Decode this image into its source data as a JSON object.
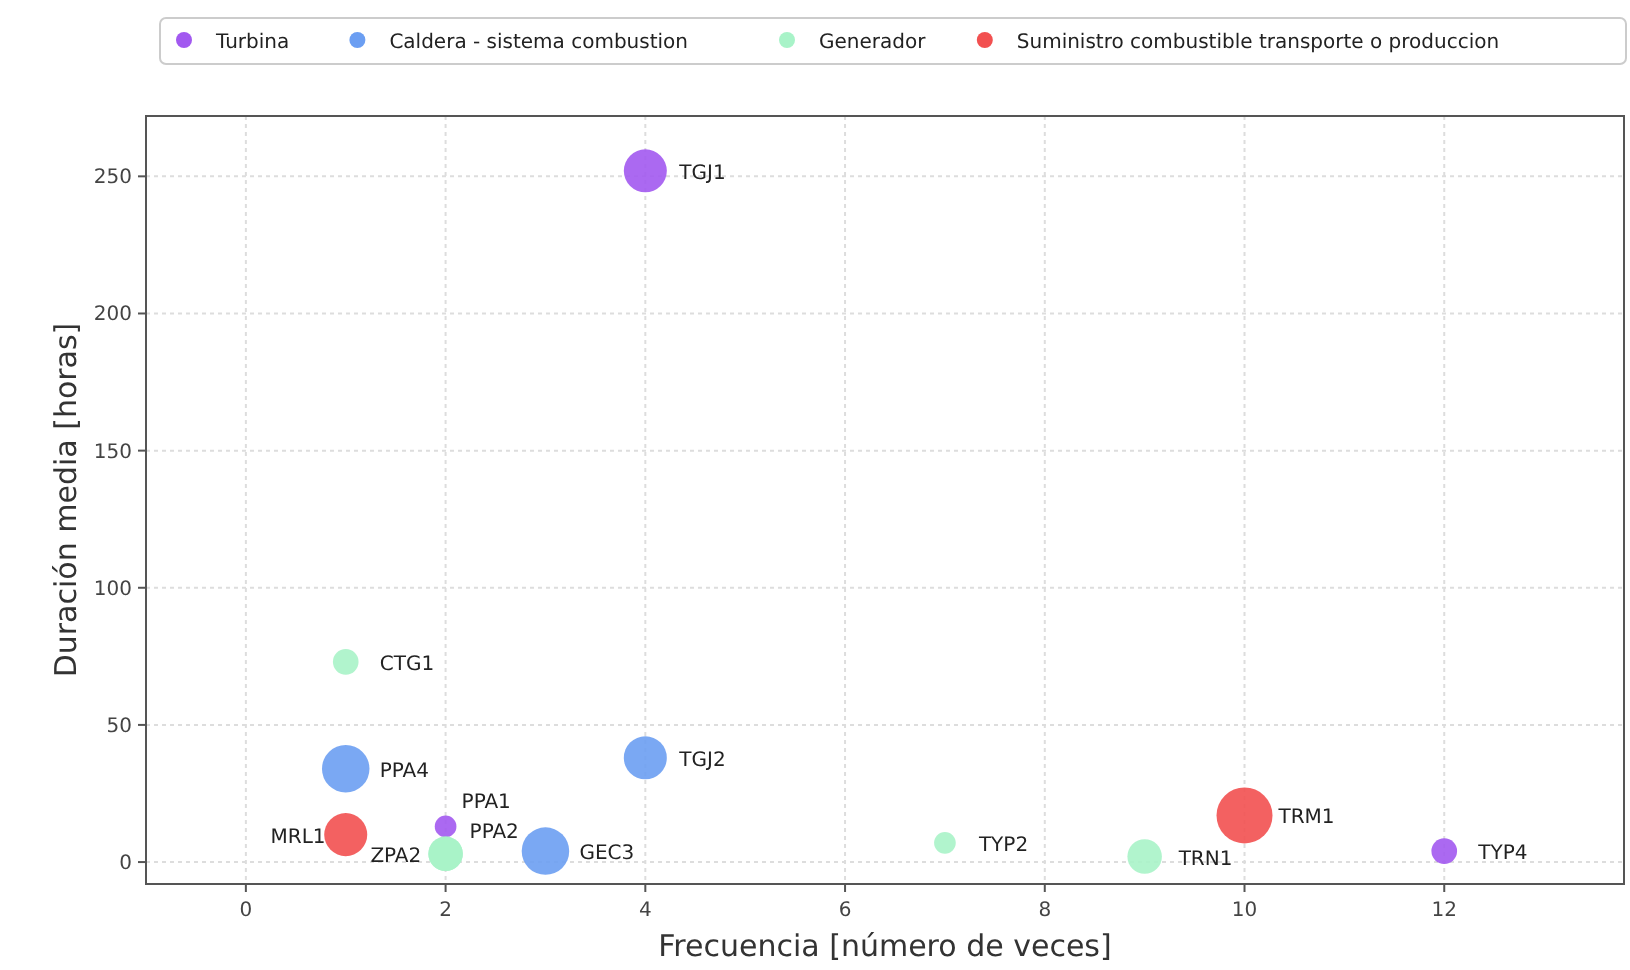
{
  "chart_data": {
    "type": "bubble",
    "xlabel": "Frecuencia [número de veces]",
    "ylabel": "Duración media [horas]",
    "xlim": [
      -1,
      13.8
    ],
    "ylim": [
      -8,
      272
    ],
    "xticks": [
      0,
      2,
      4,
      6,
      8,
      10,
      12
    ],
    "yticks": [
      0,
      50,
      100,
      150,
      200,
      250
    ],
    "grid": true,
    "legend": "top",
    "relative": false,
    "series": [
      {
        "name": "Turbina",
        "color": "#a259f0",
        "x": [
          4,
          2,
          12
        ],
        "values": [
          252,
          13,
          4
        ],
        "sizes": [
          0.59,
          0.15,
          0.21
        ]
      },
      {
        "name": "Caldera - sistema combustion",
        "color": "#6b9ef2",
        "x": [
          1,
          4,
          3
        ],
        "values": [
          34,
          38,
          4
        ],
        "sizes": [
          0.72,
          0.59,
          0.72
        ]
      },
      {
        "name": "Generador",
        "color": "#a8f3c8",
        "x": [
          1,
          2,
          2,
          7,
          9
        ],
        "values": [
          73,
          3,
          3,
          7,
          2
        ],
        "sizes": [
          0.21,
          0.38,
          0.38,
          0.15,
          0.38
        ]
      },
      {
        "name": "Suministro combustible transporte o produccion",
        "color": "#f25050",
        "x": [
          1,
          10
        ],
        "values": [
          10,
          17
        ],
        "sizes": [
          0.59,
          1
        ]
      }
    ],
    "annotations": [
      {
        "text": "TGJ1",
        "x": 4,
        "y": 252
      },
      {
        "text": "PPA1",
        "x": 2,
        "y": 13
      },
      {
        "text": "TYP4",
        "x": 12,
        "y": 4
      },
      {
        "text": "PPA4",
        "x": 1,
        "y": 34
      },
      {
        "text": "TGJ2",
        "x": 4,
        "y": 38
      },
      {
        "text": "GEC3",
        "x": 3,
        "y": 4
      },
      {
        "text": "CTG1",
        "x": 1,
        "y": 73
      },
      {
        "text": "ZPA2",
        "x": 2,
        "y": 3
      },
      {
        "text": "PPA2",
        "x": 2,
        "y": 3
      },
      {
        "text": "TYP2",
        "x": 7,
        "y": 7
      },
      {
        "text": "TRN1",
        "x": 9,
        "y": 2
      },
      {
        "text": "MRL1",
        "x": 1,
        "y": 10
      },
      {
        "text": "TRM1",
        "x": 10,
        "y": 17
      }
    ]
  }
}
